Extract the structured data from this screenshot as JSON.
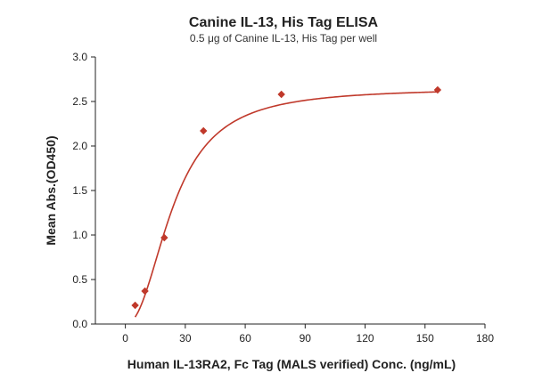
{
  "chart_data": {
    "type": "scatter",
    "title": "Canine IL-13, His Tag ELISA",
    "subtitle": "0.5 μg of Canine IL-13, His Tag per well",
    "xlabel": "Human IL-13RA2, Fc Tag (MALS verified) Conc. (ng/mL)",
    "ylabel": "Mean Abs.(OD450)",
    "xlim": [
      -15,
      180
    ],
    "ylim": [
      0,
      3.0
    ],
    "xticks": [
      0,
      30,
      60,
      90,
      120,
      150,
      180
    ],
    "yticks": [
      0.0,
      0.5,
      1.0,
      1.5,
      2.0,
      2.5,
      3.0
    ],
    "ytick_labels": [
      "0.0",
      "0.5",
      "1.0",
      "1.5",
      "2.0",
      "2.5",
      "3.0"
    ],
    "grid": false,
    "series": [
      {
        "x": [
          4.9,
          9.8,
          19.5,
          39.1,
          78.1,
          156.3
        ],
        "y": [
          0.21,
          0.37,
          0.97,
          2.17,
          2.58,
          2.63
        ],
        "marker": "diamond",
        "color": "#c0392b",
        "fit": "sigmoid"
      }
    ],
    "fit_params": {
      "bottom": 0.0,
      "top": 2.65,
      "ec50": 24.0,
      "hill": 2.2
    },
    "curve_color": "#c0392b"
  }
}
